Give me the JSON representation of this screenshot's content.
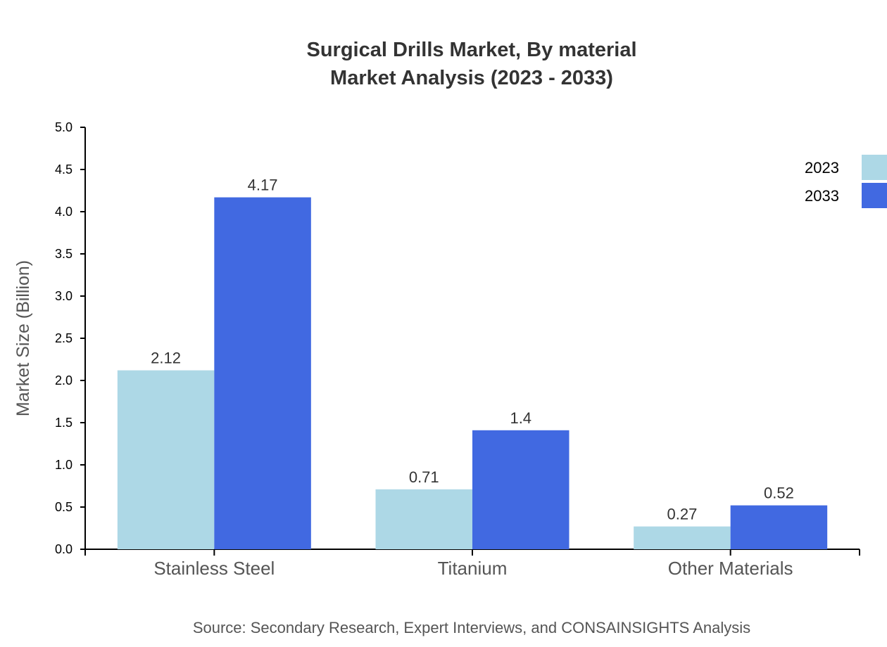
{
  "chart_data": {
    "type": "bar",
    "title": "Surgical Drills Market, By material",
    "subtitle": "Market Analysis (2023 - 2033)",
    "xlabel": "",
    "ylabel": "Market Size (Billion)",
    "ylim": [
      0,
      5
    ],
    "yticks": [
      "0.0",
      "0.5",
      "1.0",
      "1.5",
      "2.0",
      "2.5",
      "3.0",
      "3.5",
      "4.0",
      "4.5",
      "5.0"
    ],
    "categories": [
      "Stainless Steel",
      "Titanium",
      "Other Materials"
    ],
    "series": [
      {
        "name": "2023",
        "values": [
          2.12,
          0.71,
          0.27
        ],
        "labels": [
          "2.12",
          "0.71",
          "0.27"
        ],
        "color": "#add8e6"
      },
      {
        "name": "2033",
        "values": [
          4.17,
          1.41,
          0.52
        ],
        "labels": [
          "4.17",
          "1.4",
          "0.52"
        ],
        "color": "#4169e1"
      }
    ],
    "legend": "top-right",
    "grid": false,
    "source": "Source: Secondary Research, Expert Interviews, and CONSAINSIGHTS Analysis"
  }
}
